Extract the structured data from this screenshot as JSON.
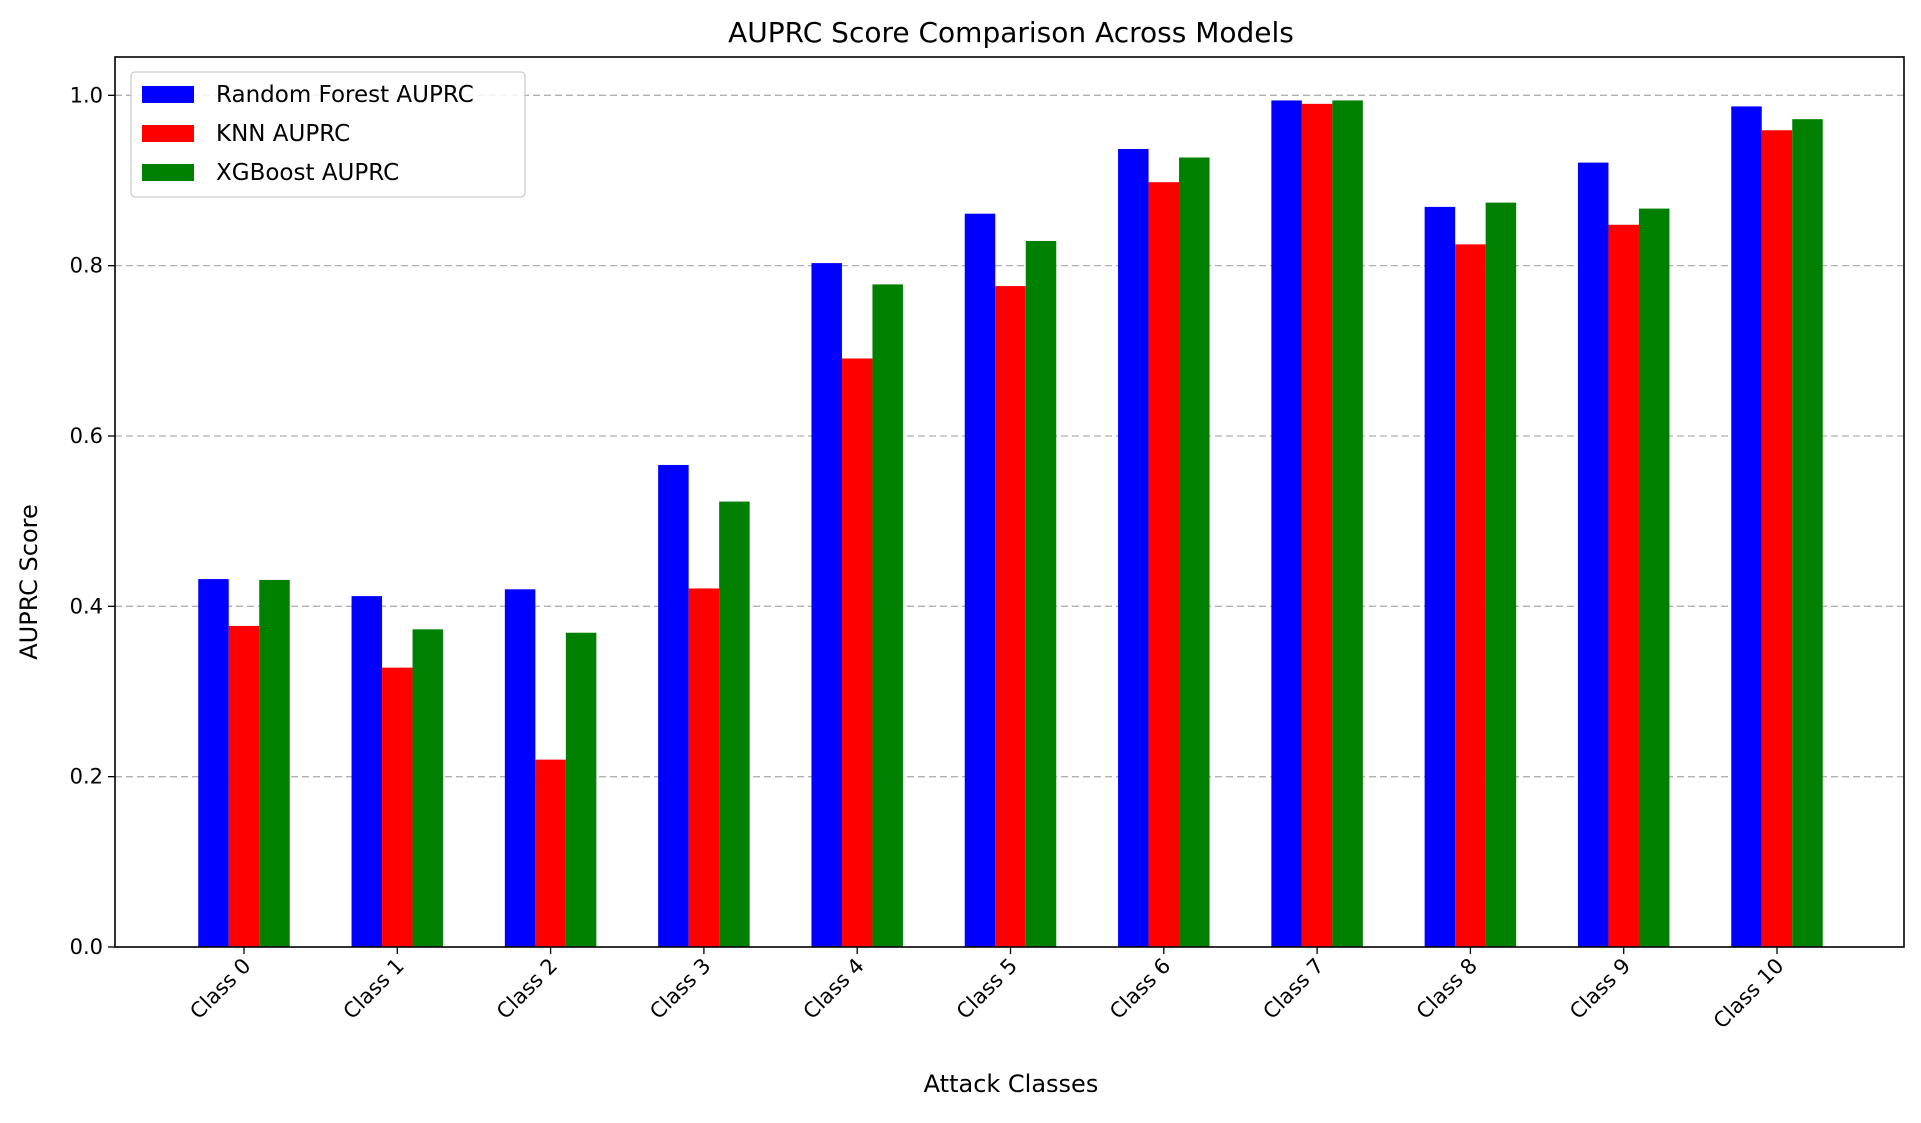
{
  "chart_data": {
    "type": "bar",
    "title": "AUPRC Score Comparison Across Models",
    "xlabel": "Attack Classes",
    "ylabel": "AUPRC Score",
    "categories": [
      "Class 0",
      "Class 1",
      "Class 2",
      "Class 3",
      "Class 4",
      "Class 5",
      "Class 6",
      "Class 7",
      "Class 8",
      "Class 9",
      "Class 10"
    ],
    "series": [
      {
        "name": "Random Forest AUPRC",
        "color": "#0000ff",
        "values": [
          0.432,
          0.412,
          0.42,
          0.566,
          0.803,
          0.861,
          0.937,
          0.994,
          0.869,
          0.921,
          0.987
        ]
      },
      {
        "name": "KNN AUPRC",
        "color": "#ff0000",
        "values": [
          0.377,
          0.328,
          0.22,
          0.421,
          0.691,
          0.776,
          0.898,
          0.99,
          0.825,
          0.848,
          0.959
        ]
      },
      {
        "name": "XGBoost AUPRC",
        "color": "#008000",
        "values": [
          0.431,
          0.373,
          0.369,
          0.523,
          0.778,
          0.829,
          0.927,
          0.994,
          0.874,
          0.867,
          0.972
        ]
      }
    ],
    "ylim": [
      0.0,
      1.045
    ],
    "yticks": [
      0.0,
      0.2,
      0.4,
      0.6,
      0.8,
      1.0
    ],
    "ytick_labels": [
      "0.0",
      "0.2",
      "0.4",
      "0.6",
      "0.8",
      "1.0"
    ],
    "grid": "y-dashed",
    "legend_position": "top-left"
  }
}
